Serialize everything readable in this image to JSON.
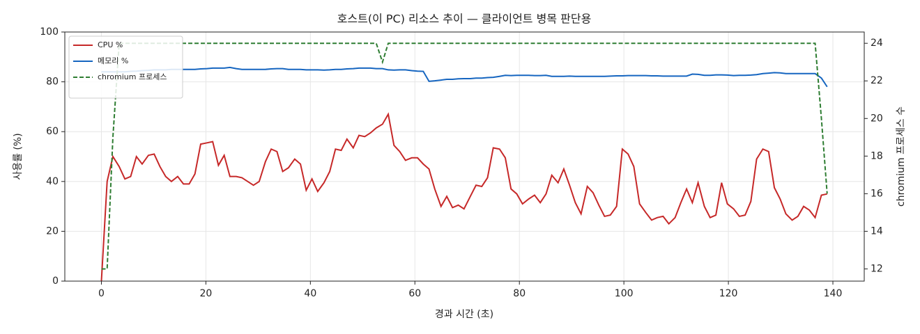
{
  "chart_data": {
    "type": "line",
    "title": "호스트(이 PC) 리소스 추이 — 클라이언트 병목 판단용",
    "x_label": "경과 시간 (초)",
    "y_label": "사용률 (%)",
    "y2_label": "chromium 프로세스 수",
    "x": [
      0,
      1.1,
      2.2,
      3.4,
      4.5,
      5.6,
      6.7,
      7.8,
      9,
      10.1,
      11.2,
      12.3,
      13.4,
      14.6,
      15.7,
      16.8,
      17.9,
      19,
      20.2,
      21.3,
      22.4,
      23.5,
      24.6,
      25.8,
      26.9,
      28,
      29.1,
      30.2,
      31.4,
      32.5,
      33.6,
      34.7,
      35.8,
      37,
      38.1,
      39.2,
      40.3,
      41.4,
      42.6,
      43.7,
      44.8,
      45.9,
      47,
      48.2,
      49.3,
      50.4,
      51.5,
      52.6,
      53.8,
      54.9,
      56,
      57.1,
      58.2,
      59.4,
      60.5,
      61.6,
      62.7,
      63.8,
      65,
      66.1,
      67.2,
      68.3,
      69.4,
      70.6,
      71.7,
      72.8,
      73.9,
      75,
      76.2,
      77.3,
      78.4,
      79.5,
      80.6,
      81.8,
      82.9,
      84,
      85.1,
      86.2,
      87.4,
      88.5,
      89.6,
      90.7,
      91.8,
      93,
      94.1,
      95.2,
      96.3,
      97.4,
      98.6,
      99.7,
      100.8,
      101.9,
      103,
      104.2,
      105.3,
      106.4,
      107.5,
      108.6,
      109.8,
      110.9,
      112,
      113.1,
      114.2,
      115.4,
      116.5,
      117.6,
      118.7,
      119.8,
      121,
      122.1,
      123.2,
      124.3,
      125.4,
      126.6,
      127.7,
      128.8,
      129.9,
      131,
      132.2,
      133.3,
      134.4,
      135.5,
      136.6,
      137.8,
      138.9
    ],
    "series": [
      {
        "name": "CPU %",
        "color": "#c62828",
        "values": [
          0,
          40,
          50,
          46,
          41,
          42,
          50,
          47,
          50.5,
          51,
          46,
          42,
          40,
          42,
          39,
          39,
          43,
          55,
          55.5,
          56,
          46.5,
          50.5,
          42,
          42,
          41.5,
          40,
          38.5,
          40,
          48,
          53,
          52,
          44,
          45.5,
          49,
          47,
          36.5,
          41,
          36,
          39.5,
          44,
          53,
          52.5,
          57,
          53.5,
          58.5,
          58,
          59.5,
          61.5,
          63,
          67,
          54.5,
          52,
          48.5,
          49.5,
          49.5,
          47,
          45,
          37,
          30,
          34,
          29.5,
          30.5,
          29,
          34,
          38.5,
          38,
          41.5,
          53.5,
          53,
          49.5,
          37,
          35,
          31,
          33,
          34.5,
          31.5,
          35,
          42.5,
          39.5,
          45,
          38.5,
          31.5,
          27,
          38,
          35.5,
          30.5,
          26,
          26.5,
          30,
          53,
          51,
          46,
          31,
          27.5,
          24.5,
          25.5,
          26,
          23,
          25.5,
          31.5,
          37,
          31.5,
          39.5,
          30,
          25.5,
          26.5,
          39.5,
          31,
          29,
          26,
          26.5,
          32,
          49,
          53,
          52,
          37.5,
          33,
          27,
          24.5,
          26,
          30,
          28.5,
          25.5,
          34.5,
          35
        ]
      },
      {
        "name": "메모리 %",
        "color": "#1565c0",
        "values": [
          84,
          84,
          84,
          84,
          84,
          84.2,
          84.3,
          84.5,
          84.6,
          84.8,
          84.8,
          84.8,
          85,
          85,
          85,
          85,
          85,
          85.2,
          85.3,
          85.5,
          85.5,
          85.5,
          85.8,
          85.3,
          85,
          85,
          85,
          85,
          85,
          85.2,
          85.3,
          85.3,
          85,
          85,
          85,
          84.8,
          84.8,
          84.8,
          84.7,
          84.8,
          85,
          85,
          85.2,
          85.3,
          85.5,
          85.5,
          85.5,
          85.3,
          85.3,
          84.8,
          84.7,
          84.8,
          84.8,
          84.5,
          84.3,
          84.2,
          80.2,
          80.4,
          80.7,
          81,
          81,
          81.2,
          81.3,
          81.3,
          81.5,
          81.5,
          81.7,
          81.8,
          82.2,
          82.6,
          82.5,
          82.6,
          82.6,
          82.6,
          82.5,
          82.5,
          82.6,
          82.2,
          82.2,
          82.2,
          82.3,
          82.2,
          82.2,
          82.2,
          82.2,
          82.2,
          82.2,
          82.3,
          82.4,
          82.4,
          82.5,
          82.5,
          82.5,
          82.5,
          82.4,
          82.4,
          82.3,
          82.3,
          82.3,
          82.3,
          82.3,
          83.1,
          83,
          82.6,
          82.6,
          82.8,
          82.8,
          82.7,
          82.5,
          82.6,
          82.6,
          82.7,
          82.9,
          83.3,
          83.5,
          83.7,
          83.6,
          83.3,
          83.3,
          83.3,
          83.3,
          83.3,
          83.3,
          81.5,
          78
        ]
      },
      {
        "name": "chromium 프로세스",
        "color": "#2e7d32",
        "linestyle": "dashed",
        "axis": "y2",
        "values": [
          12,
          12,
          19,
          24,
          24,
          24,
          24,
          24,
          24,
          24,
          24,
          24,
          24,
          24,
          24,
          24,
          24,
          24,
          24,
          24,
          24,
          24,
          24,
          24,
          24,
          24,
          24,
          24,
          24,
          24,
          24,
          24,
          24,
          24,
          24,
          24,
          24,
          24,
          24,
          24,
          24,
          24,
          24,
          24,
          24,
          24,
          24,
          24,
          23,
          24,
          24,
          24,
          24,
          24,
          24,
          24,
          24,
          24,
          24,
          24,
          24,
          24,
          24,
          24,
          24,
          24,
          24,
          24,
          24,
          24,
          24,
          24,
          24,
          24,
          24,
          24,
          24,
          24,
          24,
          24,
          24,
          24,
          24,
          24,
          24,
          24,
          24,
          24,
          24,
          24,
          24,
          24,
          24,
          24,
          24,
          24,
          24,
          24,
          24,
          24,
          24,
          24,
          24,
          24,
          24,
          24,
          24,
          24,
          24,
          24,
          24,
          24,
          24,
          24,
          24,
          24,
          24,
          24,
          24,
          24,
          24,
          24,
          24,
          20,
          16
        ]
      }
    ],
    "xlim": [
      -7,
      146
    ],
    "xticks": [
      0,
      20,
      40,
      60,
      80,
      100,
      120,
      140
    ],
    "ylim": [
      0,
      100
    ],
    "yticks": [
      0,
      20,
      40,
      60,
      80,
      100
    ],
    "y2lim": [
      11.35,
      24.6
    ],
    "y2ticks": [
      12,
      14,
      16,
      18,
      20,
      22,
      24
    ],
    "grid": true,
    "legend": "upper left"
  }
}
